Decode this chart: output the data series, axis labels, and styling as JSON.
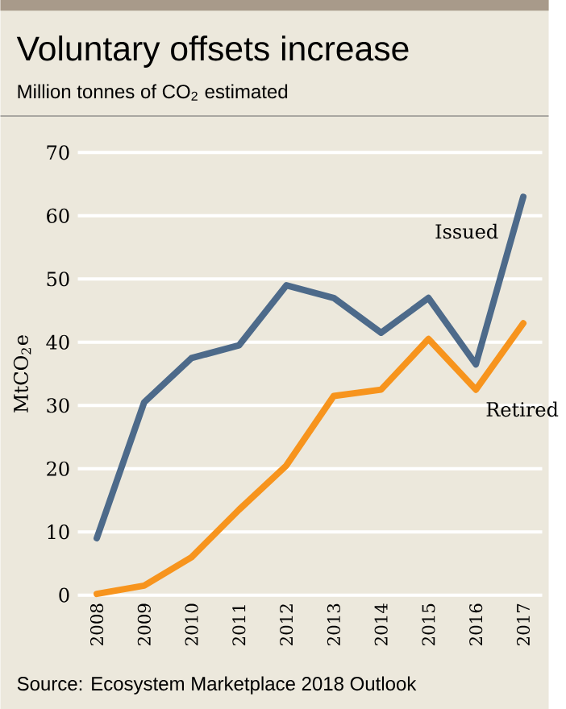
{
  "chart_data": {
    "type": "line",
    "title": "Voluntary offsets increase",
    "subtitle": "Million tonnes of CO$_{2}$ estimated",
    "ylabel": "MtCO$_{2}$e",
    "categories": [
      "2008",
      "2009",
      "2010",
      "2011",
      "2012",
      "2013",
      "2014",
      "2015",
      "2016",
      "2017"
    ],
    "series": [
      {
        "name": "Issued",
        "color": "#4d6a8a",
        "values": [
          9,
          30.5,
          37.5,
          39.5,
          49,
          47,
          41.5,
          47,
          36.5,
          63
        ]
      },
      {
        "name": "Retired",
        "color": "#f7941d",
        "values": [
          0.2,
          1.5,
          6,
          13.5,
          20.5,
          31.5,
          32.5,
          40.5,
          32.5,
          43
        ]
      }
    ],
    "ylim": [
      0,
      70
    ],
    "yticks": [
      0,
      10,
      20,
      30,
      40,
      50,
      60,
      70
    ],
    "grid": "y",
    "legend": false,
    "marker": "none",
    "line_style": "solid",
    "annotations": [
      "Source: Ecosystem Marketplace 2018 Outlook"
    ]
  }
}
